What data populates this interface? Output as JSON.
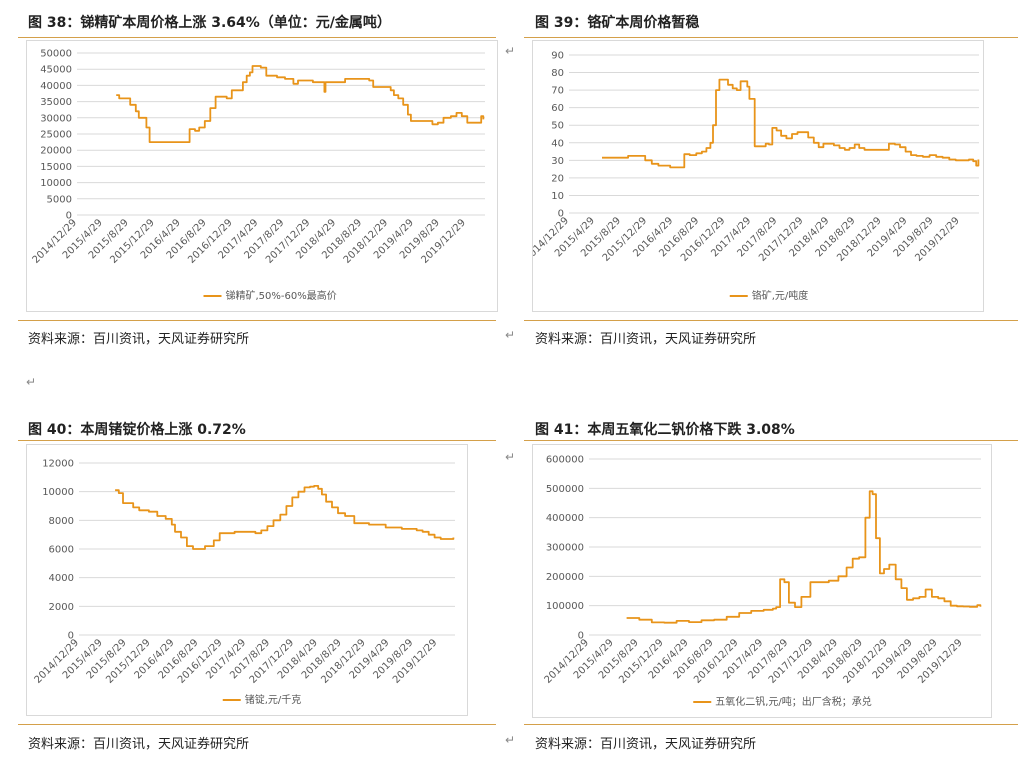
{
  "panels": [
    {
      "title": "图 38：锑精矿本周价格上涨 3.64%（单位：元/金属吨）",
      "source": "资料来源：百川资讯，天风证券研究所",
      "chart_data": {
        "type": "line",
        "title": "",
        "xlabel": "",
        "ylabel": "",
        "ylim": [
          0,
          50000
        ],
        "yticks": [
          0,
          5000,
          10000,
          15000,
          20000,
          25000,
          30000,
          35000,
          40000,
          45000,
          50000
        ],
        "xticks": [
          "2014/12/29",
          "2015/4/29",
          "2015/8/29",
          "2015/12/29",
          "2016/4/29",
          "2016/8/29",
          "2016/12/29",
          "2017/4/29",
          "2017/8/29",
          "2017/12/29",
          "2018/4/29",
          "2018/8/29",
          "2018/12/29",
          "2019/4/29",
          "2019/8/29",
          "2019/12/29"
        ],
        "legend": "bottom",
        "color": "#e8941a",
        "series": [
          {
            "name": "锑精矿,50%-60%最高价",
            "x": [
              "2015/7/1",
              "2015/7/15",
              "2015/8/20",
              "2015/9/5",
              "2015/10/1",
              "2015/10/15",
              "2015/11/20",
              "2015/12/5",
              "2016/5/25",
              "2016/6/10",
              "2016/7/5",
              "2016/7/25",
              "2016/8/20",
              "2016/9/15",
              "2016/10/10",
              "2016/11/5",
              "2016/12/1",
              "2016/12/25",
              "2017/1/20",
              "2017/2/15",
              "2017/3/5",
              "2017/3/20",
              "2017/4/1",
              "2017/4/20",
              "2017/5/10",
              "2017/6/5",
              "2017/7/5",
              "2017/7/25",
              "2017/9/1",
              "2017/10/10",
              "2017/11/1",
              "2017/11/20",
              "2018/1/10",
              "2018/2/20",
              "2018/3/5",
              "2018/3/10",
              "2018/3/20",
              "2018/5/20",
              "2018/6/10",
              "2018/9/10",
              "2018/10/1",
              "2018/10/20",
              "2018/12/10",
              "2019/1/10",
              "2019/1/25",
              "2019/2/15",
              "2019/3/10",
              "2019/4/1",
              "2019/4/15",
              "2019/5/10",
              "2019/6/20",
              "2019/7/25",
              "2019/8/20",
              "2019/9/15",
              "2019/10/20",
              "2019/11/15",
              "2019/12/10",
              "2020/1/5",
              "2020/2/20",
              "2020/3/10",
              "2020/3/20"
            ],
            "values": [
              37000,
              36000,
              36000,
              34000,
              32000,
              30000,
              27000,
              22500,
              22500,
              26500,
              26000,
              27000,
              29000,
              33000,
              36500,
              36500,
              36000,
              38500,
              38500,
              41000,
              43000,
              44000,
              46000,
              46000,
              45500,
              43000,
              43000,
              42500,
              42000,
              40500,
              41500,
              41500,
              41000,
              41000,
              38000,
              41000,
              41000,
              41000,
              42000,
              42000,
              41500,
              39500,
              39500,
              38500,
              37000,
              36000,
              34000,
              31000,
              29000,
              29000,
              29000,
              28000,
              28500,
              30000,
              30500,
              31500,
              30500,
              28500,
              28500,
              30500,
              29500
            ]
          }
        ]
      }
    },
    {
      "title": "图 39：铬矿本周价格暂稳",
      "source": "资料来源：百川资讯，天风证券研究所",
      "chart_data": {
        "type": "line",
        "title": "",
        "xlabel": "",
        "ylabel": "",
        "ylim": [
          0,
          90
        ],
        "yticks": [
          0,
          10,
          20,
          30,
          40,
          50,
          60,
          70,
          80,
          90
        ],
        "xticks": [
          "2014/12/29",
          "2015/4/29",
          "2015/8/29",
          "2015/12/29",
          "2016/4/29",
          "2016/8/29",
          "2016/12/29",
          "2017/4/29",
          "2017/8/29",
          "2017/12/29",
          "2018/4/29",
          "2018/8/29",
          "2018/12/29",
          "2019/4/29",
          "2019/8/29",
          "2019/12/29"
        ],
        "legend": "bottom",
        "color": "#e8941a",
        "series": [
          {
            "name": "铬矿,元/吨度",
            "x": [
              "2015/6/1",
              "2015/8/1",
              "2015/10/1",
              "2015/11/15",
              "2015/12/20",
              "2016/1/20",
              "2016/2/20",
              "2016/4/15",
              "2016/5/20",
              "2016/6/20",
              "2016/7/15",
              "2016/8/15",
              "2016/9/10",
              "2016/10/1",
              "2016/10/20",
              "2016/11/1",
              "2016/11/15",
              "2016/12/1",
              "2016/12/20",
              "2017/1/10",
              "2017/2/1",
              "2017/2/20",
              "2017/3/10",
              "2017/3/25",
              "2017/4/10",
              "2017/4/20",
              "2017/5/15",
              "2017/6/10",
              "2017/7/5",
              "2017/7/20",
              "2017/8/5",
              "2017/8/25",
              "2017/9/15",
              "2017/10/10",
              "2017/11/5",
              "2017/12/1",
              "2017/12/25",
              "2018/1/20",
              "2018/2/15",
              "2018/3/10",
              "2018/4/1",
              "2018/4/25",
              "2018/5/20",
              "2018/6/15",
              "2018/7/10",
              "2018/8/1",
              "2018/8/25",
              "2018/9/15",
              "2018/10/10",
              "2018/11/5",
              "2018/12/1",
              "2019/1/5",
              "2019/2/1",
              "2019/3/1",
              "2019/3/25",
              "2019/4/20",
              "2019/5/15",
              "2019/6/10",
              "2019/7/10",
              "2019/8/10",
              "2019/9/10",
              "2019/10/10",
              "2019/11/10",
              "2019/12/10",
              "2020/1/10",
              "2020/2/10",
              "2020/3/1",
              "2020/3/15",
              "2020/3/25"
            ],
            "values": [
              31.5,
              31.5,
              32.5,
              32.5,
              30,
              28,
              27,
              26,
              26,
              33.5,
              33,
              34,
              35,
              37,
              40,
              50,
              70,
              76,
              76,
              73,
              71,
              70,
              75,
              75,
              72,
              65,
              38,
              38,
              39.5,
              39,
              48.5,
              47,
              44,
              42.5,
              45,
              46,
              46,
              43,
              40,
              37.5,
              39.5,
              39.5,
              38.5,
              37,
              36,
              37,
              39,
              37,
              36,
              36,
              36,
              36,
              39.5,
              39,
              37.5,
              35,
              33,
              32.5,
              32,
              33,
              32,
              31.5,
              30.5,
              30,
              30,
              30.5,
              29.5,
              27,
              30.5
            ]
          }
        ]
      }
    },
    {
      "title": "图 40：本周锗锭价格上涨 0.72%",
      "source": "资料来源：百川资讯，天风证券研究所",
      "chart_data": {
        "type": "line",
        "title": "",
        "xlabel": "",
        "ylabel": "",
        "ylim": [
          0,
          12000
        ],
        "yticks": [
          0,
          2000,
          4000,
          6000,
          8000,
          10000,
          12000
        ],
        "xticks": [
          "2014/12/29",
          "2015/4/29",
          "2015/8/29",
          "2015/12/29",
          "2016/4/29",
          "2016/8/29",
          "2016/12/29",
          "2017/4/29",
          "2017/8/29",
          "2017/12/29",
          "2018/4/29",
          "2018/8/29",
          "2018/12/29",
          "2019/4/29",
          "2019/8/29",
          "2019/12/29"
        ],
        "legend": "bottom",
        "color": "#e8941a",
        "series": [
          {
            "name": "锗锭,元/千克",
            "x": [
              "2015/7/1",
              "2015/7/20",
              "2015/8/10",
              "2015/10/1",
              "2015/11/1",
              "2015/12/20",
              "2016/2/1",
              "2016/3/15",
              "2016/4/15",
              "2016/5/1",
              "2016/6/1",
              "2016/7/1",
              "2016/8/1",
              "2016/9/1",
              "2016/10/1",
              "2016/11/15",
              "2016/12/15",
              "2017/1/15",
              "2017/3/1",
              "2017/5/1",
              "2017/6/15",
              "2017/7/15",
              "2017/8/15",
              "2017/9/15",
              "2017/10/20",
              "2017/11/20",
              "2017/12/20",
              "2018/1/20",
              "2018/2/20",
              "2018/3/20",
              "2018/4/10",
              "2018/5/1",
              "2018/5/20",
              "2018/6/10",
              "2018/7/10",
              "2018/8/10",
              "2018/9/15",
              "2018/11/1",
              "2018/12/15",
              "2019/1/15",
              "2019/3/1",
              "2019/4/10",
              "2019/5/10",
              "2019/7/1",
              "2019/8/15",
              "2019/9/15",
              "2019/10/15",
              "2019/11/15",
              "2019/12/15",
              "2020/1/15",
              "2020/2/15",
              "2020/3/20"
            ],
            "values": [
              10100,
              9900,
              9200,
              8900,
              8700,
              8600,
              8300,
              8100,
              7700,
              7200,
              6800,
              6200,
              6000,
              6000,
              6200,
              6600,
              7100,
              7100,
              7200,
              7200,
              7100,
              7300,
              7600,
              8000,
              8400,
              9000,
              9600,
              10000,
              10300,
              10350,
              10400,
              10200,
              9800,
              9300,
              8900,
              8500,
              8300,
              7800,
              7800,
              7700,
              7700,
              7500,
              7500,
              7400,
              7400,
              7300,
              7200,
              7000,
              6800,
              6700,
              6700,
              6800
            ]
          }
        ]
      }
    },
    {
      "title": "图 41：本周五氧化二钒价格下跌 3.08%",
      "source": "资料来源：百川资讯，天风证券研究所",
      "chart_data": {
        "type": "line",
        "title": "",
        "xlabel": "",
        "ylabel": "",
        "ylim": [
          0,
          600000
        ],
        "yticks": [
          0,
          100000,
          200000,
          300000,
          400000,
          500000,
          600000
        ],
        "xticks": [
          "2014/12/29",
          "2015/4/29",
          "2015/8/29",
          "2015/12/29",
          "2016/4/29",
          "2016/8/29",
          "2016/12/29",
          "2017/4/29",
          "2017/8/29",
          "2017/12/29",
          "2018/4/29",
          "2018/8/29",
          "2018/12/29",
          "2019/4/29",
          "2019/8/29",
          "2019/12/29"
        ],
        "legend": "bottom",
        "color": "#e8941a",
        "series": [
          {
            "name": "五氧化二钒,元/吨；出厂含税；承兑",
            "x": [
              "2015/7/1",
              "2015/9/1",
              "2015/11/1",
              "2016/1/1",
              "2016/3/1",
              "2016/5/1",
              "2016/7/1",
              "2016/9/1",
              "2016/11/1",
              "2017/1/1",
              "2017/3/1",
              "2017/5/1",
              "2017/6/15",
              "2017/7/1",
              "2017/7/20",
              "2017/8/10",
              "2017/9/1",
              "2017/10/1",
              "2017/11/1",
              "2017/12/15",
              "2018/2/1",
              "2018/3/15",
              "2018/5/1",
              "2018/6/10",
              "2018/7/10",
              "2018/8/10",
              "2018/9/10",
              "2018/10/1",
              "2018/10/15",
              "2018/11/1",
              "2018/11/20",
              "2018/12/10",
              "2019/1/5",
              "2019/2/5",
              "2019/3/5",
              "2019/4/1",
              "2019/5/1",
              "2019/6/1",
              "2019/7/1",
              "2019/8/1",
              "2019/9/1",
              "2019/10/1",
              "2019/11/1",
              "2019/12/1",
              "2020/1/1",
              "2020/2/1",
              "2020/3/1",
              "2020/3/10",
              "2020/3/25"
            ],
            "values": [
              58000,
              52000,
              43000,
              42000,
              48000,
              44000,
              50000,
              52000,
              62000,
              75000,
              82000,
              86000,
              90000,
              95000,
              190000,
              180000,
              110000,
              95000,
              130000,
              180000,
              180000,
              185000,
              200000,
              230000,
              260000,
              265000,
              400000,
              490000,
              480000,
              330000,
              210000,
              225000,
              240000,
              190000,
              160000,
              120000,
              125000,
              130000,
              155000,
              130000,
              125000,
              115000,
              100000,
              98000,
              97000,
              96000,
              96000,
              102000,
              96000
            ]
          }
        ]
      }
    }
  ]
}
